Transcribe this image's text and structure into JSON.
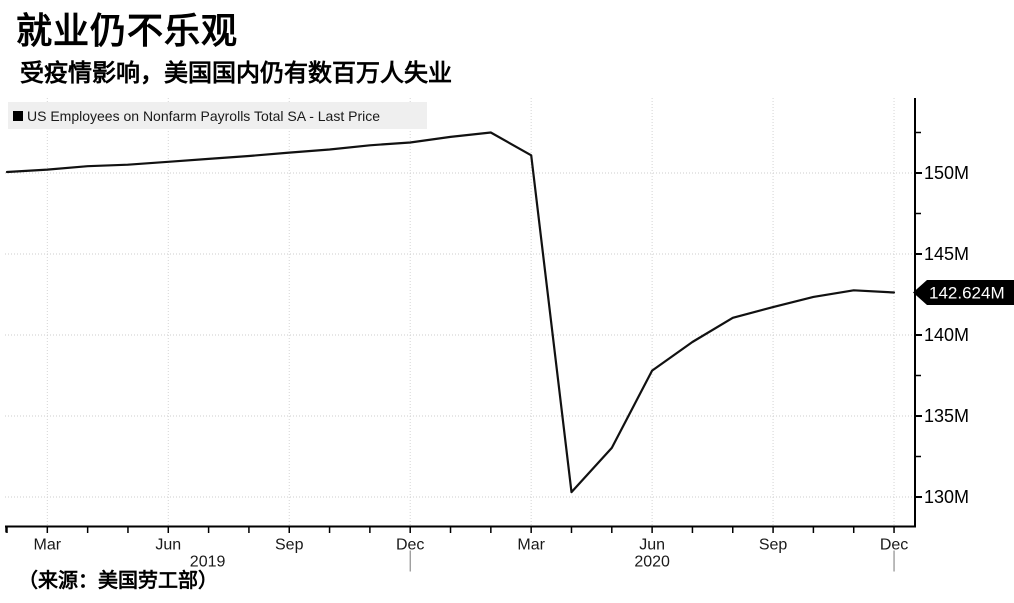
{
  "header": {
    "title": "就业仍不乐观",
    "subtitle": "受疫情影响，美国国内仍有数百万人失业"
  },
  "legend": {
    "label": "US Employees on Nonfarm Payrolls Total SA - Last Price",
    "marker_color": "#000000"
  },
  "footer": {
    "source": "（来源：美国劳工部）"
  },
  "colors": {
    "line": "#111111",
    "axis": "#000000",
    "gridline": "#cccccc",
    "legend_bg": "#efefef",
    "flag_bg": "#000000",
    "flag_fg": "#ffffff"
  },
  "chart_data": {
    "type": "line",
    "title": "就业仍不乐观",
    "subtitle": "受疫情影响，美国国内仍有数百万人失业",
    "legend": [
      "US Employees on Nonfarm Payrolls Total SA - Last Price"
    ],
    "legend_position": "top-left",
    "grid": "dotted",
    "x": [
      "Feb 2019",
      "Mar 2019",
      "Apr 2019",
      "May 2019",
      "Jun 2019",
      "Jul 2019",
      "Aug 2019",
      "Sep 2019",
      "Oct 2019",
      "Nov 2019",
      "Dec 2019",
      "Jan 2020",
      "Feb 2020",
      "Mar 2020",
      "Apr 2020",
      "May 2020",
      "Jun 2020",
      "Jul 2020",
      "Aug 2020",
      "Sep 2020",
      "Oct 2020",
      "Nov 2020",
      "Dec 2020"
    ],
    "values": [
      150.06,
      150.21,
      150.42,
      150.51,
      150.69,
      150.87,
      151.05,
      151.26,
      151.45,
      151.71,
      151.88,
      152.23,
      152.5,
      151.09,
      130.3,
      133.03,
      137.8,
      139.57,
      141.06,
      141.72,
      142.35,
      142.76,
      142.624
    ],
    "unit": "M",
    "x_tick_labels": [
      "Mar",
      "Jun",
      "Sep",
      "Dec"
    ],
    "year_labels": [
      "2019",
      "2020"
    ],
    "y_ticks": [
      {
        "value": 130,
        "label": "130M"
      },
      {
        "value": 135,
        "label": "135M"
      },
      {
        "value": 140,
        "label": "140M"
      },
      {
        "value": 145,
        "label": "145M"
      },
      {
        "value": 150,
        "label": "150M"
      }
    ],
    "y_minor_ticks": [
      132.5,
      137.5,
      142.5,
      147.5,
      152.5
    ],
    "ylim": [
      128.0,
      154.6
    ],
    "last_price": 142.624,
    "last_price_label": "142.624M"
  }
}
